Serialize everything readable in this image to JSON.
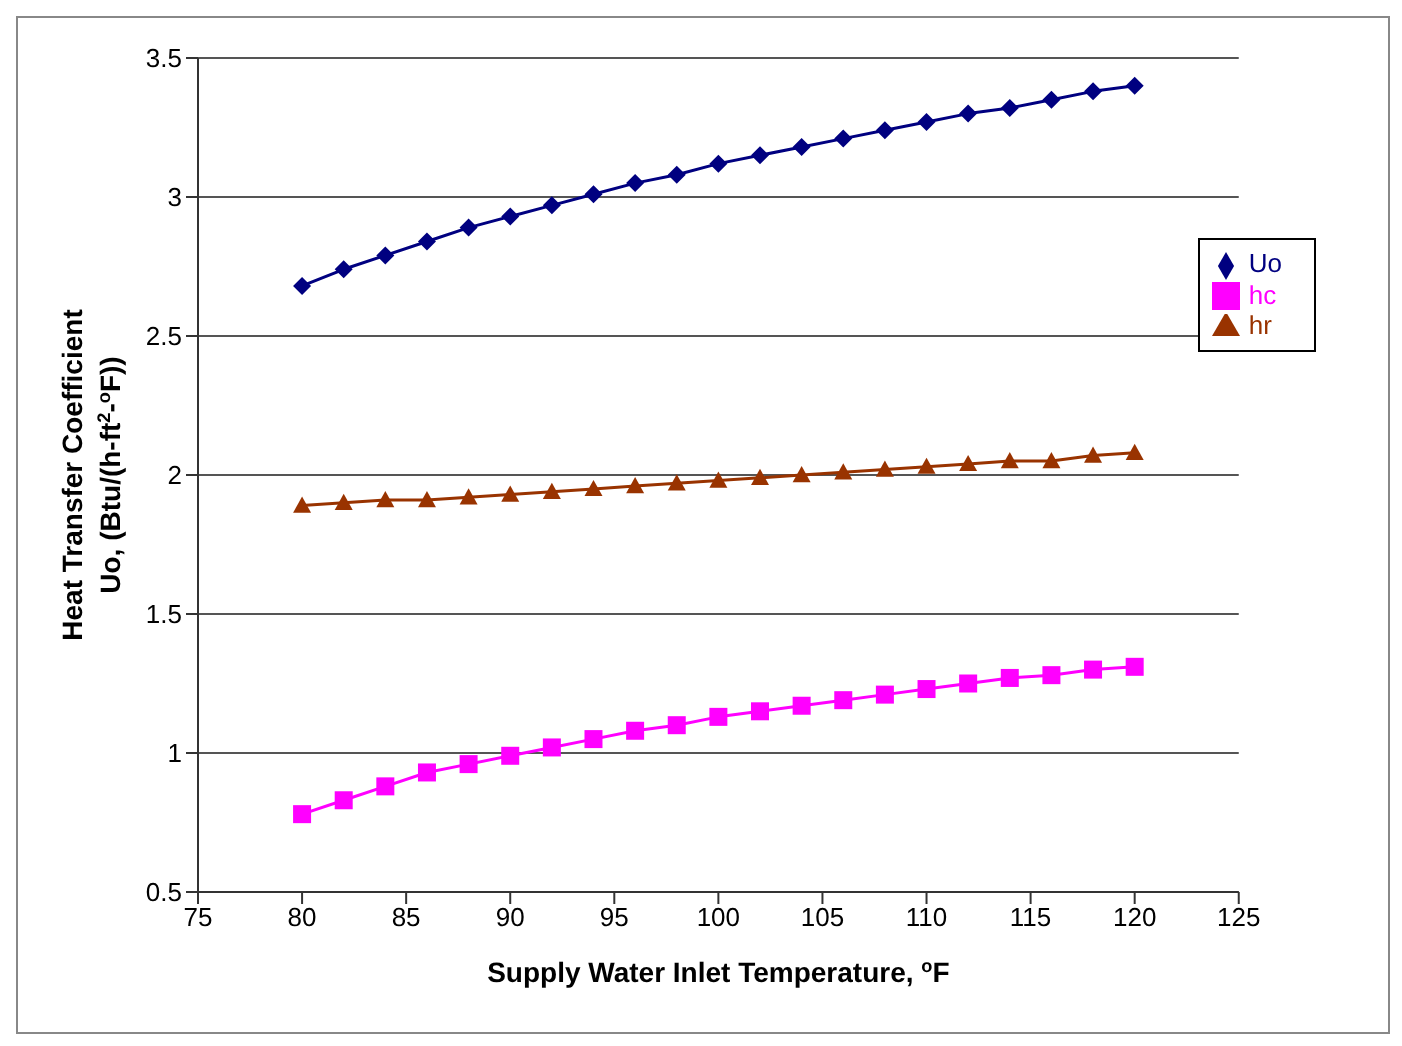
{
  "chart_data": {
    "type": "line",
    "xlabel": "Supply Water Inlet Temperature, $^{o}$F",
    "ylabel": "Heat Transfer Coefficient\nUo, (Btu/(h-ft$^{2}$-$^{o}$F))",
    "x": [
      80,
      82,
      84,
      86,
      88,
      90,
      92,
      94,
      96,
      98,
      100,
      102,
      104,
      106,
      108,
      110,
      112,
      114,
      116,
      118,
      120
    ],
    "series": [
      {
        "name": "Uo",
        "color": "#000080",
        "marker": "diamond",
        "values": [
          2.68,
          2.74,
          2.79,
          2.84,
          2.89,
          2.93,
          2.97,
          3.01,
          3.05,
          3.08,
          3.12,
          3.15,
          3.18,
          3.21,
          3.24,
          3.27,
          3.3,
          3.32,
          3.35,
          3.38,
          3.4
        ]
      },
      {
        "name": "hc",
        "color": "#ff00ff",
        "marker": "square",
        "values": [
          0.78,
          0.83,
          0.88,
          0.93,
          0.96,
          0.99,
          1.02,
          1.05,
          1.08,
          1.1,
          1.13,
          1.15,
          1.17,
          1.19,
          1.21,
          1.23,
          1.25,
          1.27,
          1.28,
          1.3,
          1.31
        ]
      },
      {
        "name": "hr",
        "color": "#993300",
        "marker": "triangle",
        "values": [
          1.89,
          1.9,
          1.91,
          1.91,
          1.92,
          1.93,
          1.94,
          1.95,
          1.96,
          1.97,
          1.98,
          1.99,
          2.0,
          2.01,
          2.02,
          2.03,
          2.04,
          2.05,
          2.05,
          2.07,
          2.08
        ]
      }
    ],
    "xlim": [
      75,
      125
    ],
    "xticks": [
      75,
      80,
      85,
      90,
      95,
      100,
      105,
      110,
      115,
      120,
      125
    ],
    "ylim": [
      0.5,
      3.5
    ],
    "yticks": [
      0.5,
      1,
      1.5,
      2,
      2.5,
      3,
      3.5
    ],
    "grid": "y",
    "legend": "top right",
    "line_style": "solid"
  }
}
